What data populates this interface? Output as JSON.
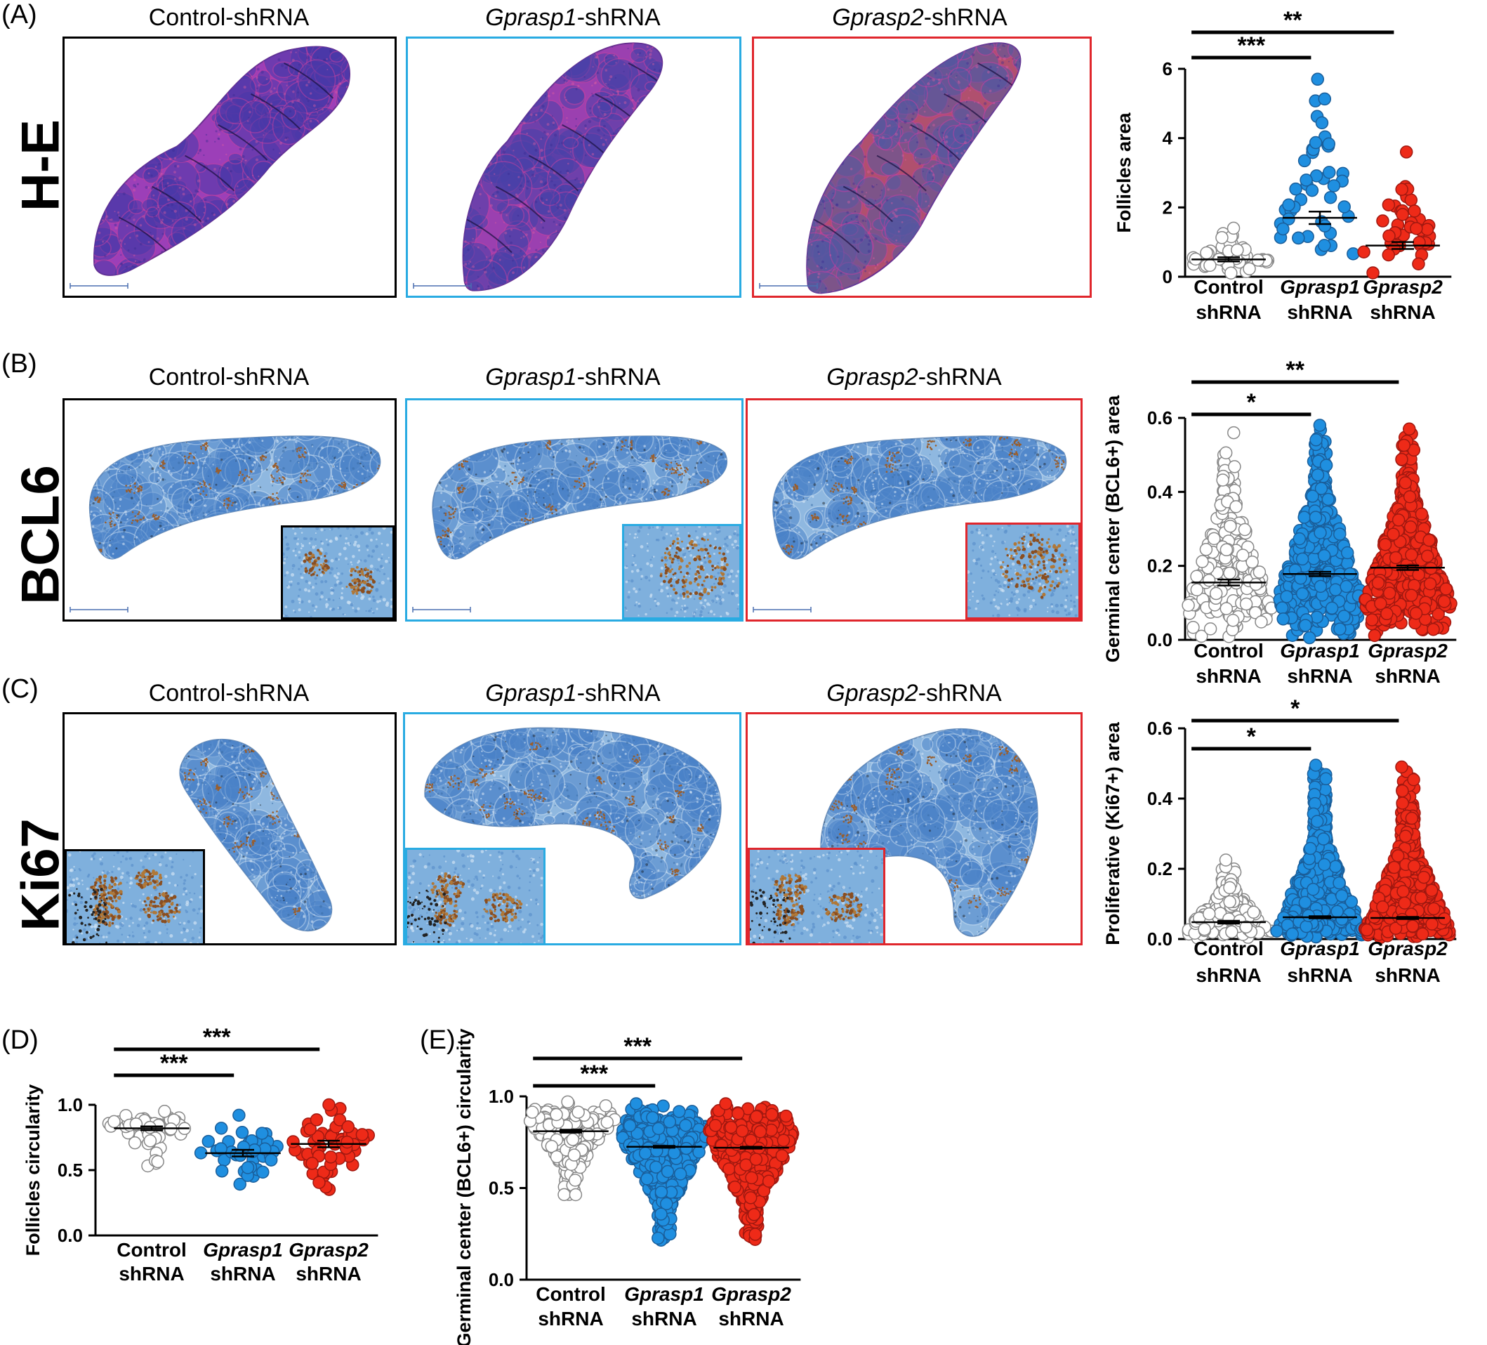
{
  "groups": {
    "control": {
      "line1": "Control",
      "line2": "shRNA",
      "title": "Control-shRNA",
      "color": "#ffffff",
      "edge": "#000000"
    },
    "g1": {
      "line1": "Gprasp1",
      "line2": "shRNA",
      "title_gene": "Gprasp1",
      "title_suffix": "-shRNA",
      "color": "#1f8fe0",
      "edge": "#1a5e9a"
    },
    "g2": {
      "line1": "Gprasp2",
      "line2": "shRNA",
      "title_gene": "Gprasp2",
      "title_suffix": "-shRNA",
      "color": "#ee2a18",
      "edge": "#a01810"
    }
  },
  "panels": {
    "A": {
      "letter": "(A)",
      "row_label": "H-E",
      "stain": "he"
    },
    "B": {
      "letter": "(B)",
      "row_label": "BCL6",
      "stain": "ihc"
    },
    "C": {
      "letter": "(C)",
      "row_label": "Ki67",
      "stain": "ihc"
    },
    "D": {
      "letter": "(D)"
    },
    "E": {
      "letter": "(E)"
    }
  },
  "frame_colors": {
    "control": "#000000",
    "g1": "#29abe2",
    "g2": "#e0262c"
  },
  "chart_data": [
    {
      "id": "A",
      "type": "scatter",
      "ylabel": "Follicles area",
      "ylim": [
        0,
        6
      ],
      "yticks": [
        0,
        2,
        4,
        6
      ],
      "categories": [
        "Control shRNA",
        "Gprasp1 shRNA",
        "Gprasp2 shRNA"
      ],
      "means": [
        0.5,
        1.7,
        0.9
      ],
      "sem": [
        0.06,
        0.18,
        0.1
      ],
      "dist": [
        {
          "n": 45,
          "min": 0.02,
          "max": 1.4,
          "mode": 0.4
        },
        {
          "n": 45,
          "min": 0.05,
          "max": 5.7,
          "mode": 1.3
        },
        {
          "n": 40,
          "min": 0.02,
          "max": 3.6,
          "mode": 0.6
        }
      ],
      "significance": [
        {
          "from": 0,
          "to": 1,
          "label": "***"
        },
        {
          "from": 0,
          "to": 2,
          "label": "**"
        }
      ]
    },
    {
      "id": "B",
      "type": "scatter",
      "ylabel": "Germinal center (BCL6+) area",
      "ylim": [
        0,
        0.6
      ],
      "yticks": [
        0.0,
        0.2,
        0.4,
        0.6
      ],
      "categories": [
        "Control shRNA",
        "Gprasp1 shRNA",
        "Gprasp2 shRNA"
      ],
      "means": [
        0.155,
        0.178,
        0.195
      ],
      "sem": [
        0.008,
        0.006,
        0.006
      ],
      "dist": [
        {
          "n": 200,
          "min": 0.0,
          "max": 0.56,
          "mode": 0.08
        },
        {
          "n": 420,
          "min": 0.0,
          "max": 0.58,
          "mode": 0.1
        },
        {
          "n": 480,
          "min": 0.0,
          "max": 0.57,
          "mode": 0.1
        }
      ],
      "significance": [
        {
          "from": 0,
          "to": 1,
          "label": "*"
        },
        {
          "from": 0,
          "to": 2,
          "label": "**"
        }
      ]
    },
    {
      "id": "C",
      "type": "scatter",
      "ylabel": "Proliferative (Ki67+) area",
      "ylim": [
        0,
        0.6
      ],
      "yticks": [
        0.0,
        0.2,
        0.4,
        0.6
      ],
      "categories": [
        "Control shRNA",
        "Gprasp1 shRNA",
        "Gprasp2 shRNA"
      ],
      "means": [
        0.048,
        0.062,
        0.06
      ],
      "sem": [
        0.004,
        0.003,
        0.003
      ],
      "dist": [
        {
          "n": 200,
          "min": 0.0,
          "max": 0.225,
          "mode": 0.02
        },
        {
          "n": 500,
          "min": 0.0,
          "max": 0.495,
          "mode": 0.02
        },
        {
          "n": 500,
          "min": 0.0,
          "max": 0.49,
          "mode": 0.02
        }
      ],
      "significance": [
        {
          "from": 0,
          "to": 1,
          "label": "*"
        },
        {
          "from": 0,
          "to": 2,
          "label": "*"
        }
      ]
    },
    {
      "id": "D",
      "type": "scatter",
      "ylabel": "Follicles circularity",
      "ylim": [
        0,
        1.0
      ],
      "yticks": [
        0.0,
        0.5,
        1.0
      ],
      "categories": [
        "Control shRNA",
        "Gprasp1 shRNA",
        "Gprasp2 shRNA"
      ],
      "means": [
        0.82,
        0.63,
        0.7
      ],
      "sem": [
        0.015,
        0.025,
        0.025
      ],
      "dist": [
        {
          "n": 50,
          "min": 0.52,
          "max": 0.95,
          "mode": 0.86
        },
        {
          "n": 42,
          "min": 0.36,
          "max": 0.92,
          "mode": 0.64
        },
        {
          "n": 50,
          "min": 0.27,
          "max": 1.0,
          "mode": 0.74
        }
      ],
      "significance": [
        {
          "from": 0,
          "to": 1,
          "label": "***"
        },
        {
          "from": 0,
          "to": 2,
          "label": "***"
        }
      ]
    },
    {
      "id": "E",
      "type": "scatter",
      "ylabel": "Germinal center (BCL6+) circularity",
      "ylim": [
        0,
        1.0
      ],
      "yticks": [
        0.0,
        0.5,
        1.0
      ],
      "categories": [
        "Control shRNA",
        "Gprasp1 shRNA",
        "Gprasp2 shRNA"
      ],
      "means": [
        0.81,
        0.725,
        0.72
      ],
      "sem": [
        0.008,
        0.005,
        0.005
      ],
      "dist": [
        {
          "n": 180,
          "min": 0.42,
          "max": 0.97,
          "mode": 0.88
        },
        {
          "n": 420,
          "min": 0.17,
          "max": 0.96,
          "mode": 0.8
        },
        {
          "n": 480,
          "min": 0.19,
          "max": 0.96,
          "mode": 0.8
        }
      ],
      "significance": [
        {
          "from": 0,
          "to": 1,
          "label": "***"
        },
        {
          "from": 0,
          "to": 2,
          "label": "***"
        }
      ]
    }
  ]
}
